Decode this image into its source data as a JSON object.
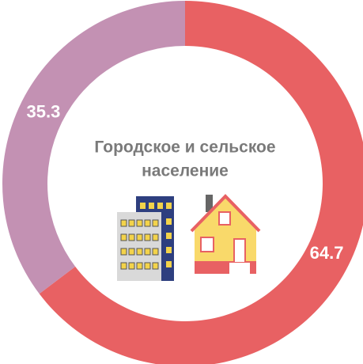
{
  "chart_data": {
    "type": "donut",
    "title": [
      "Городское и сельское",
      "население"
    ],
    "values": [
      64.7,
      35.3
    ],
    "colors": [
      "#e86163",
      "#c391b3"
    ]
  }
}
